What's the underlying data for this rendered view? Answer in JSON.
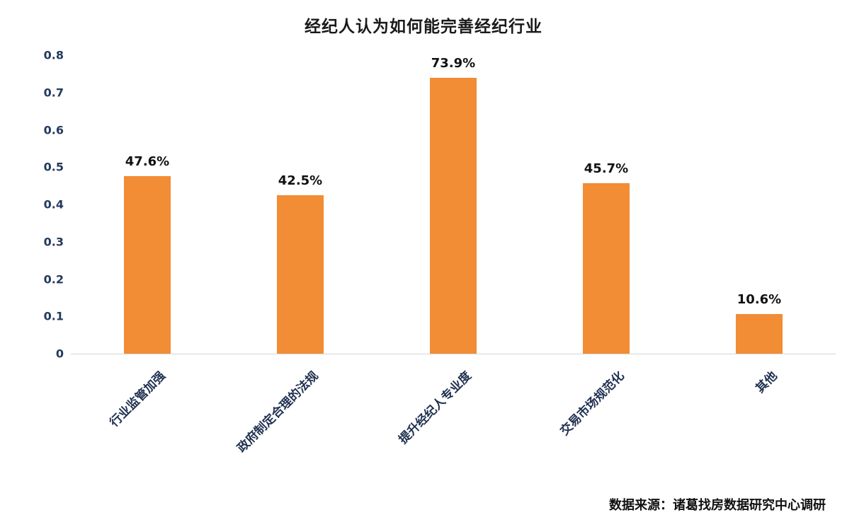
{
  "chart_data": {
    "type": "bar",
    "title": "经纪人认为如何能完善经纪行业",
    "categories": [
      "行业监管加强",
      "政府制定合理的法规",
      "提升经纪人专业度",
      "交易市场规范化",
      "其他"
    ],
    "values": [
      0.476,
      0.425,
      0.739,
      0.457,
      0.106
    ],
    "value_labels": [
      "47.6%",
      "42.5%",
      "73.9%",
      "45.7%",
      "10.6%"
    ],
    "ytick_labels": [
      "0",
      "0.1",
      "0.2",
      "0.3",
      "0.4",
      "0.5",
      "0.6",
      "0.7",
      "0.8"
    ],
    "ytick_values": [
      0,
      0.1,
      0.2,
      0.3,
      0.4,
      0.5,
      0.6,
      0.7,
      0.8
    ],
    "ylim": [
      0,
      0.8
    ],
    "xlabel": "",
    "ylabel": "",
    "legend": "none",
    "grid": "off",
    "bar_color": "#F28C35",
    "source": "数据来源：诸葛找房数据研究中心调研"
  }
}
